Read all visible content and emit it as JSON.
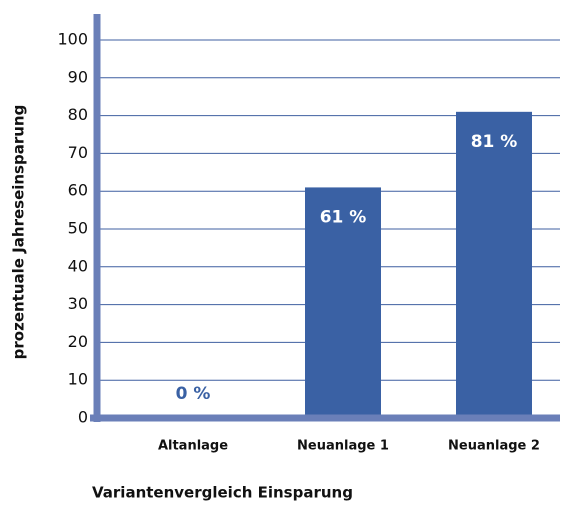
{
  "chart_data": {
    "type": "bar",
    "x_label": "Variantenvergleich Einsparung",
    "y_label": "prozentuale Jahreseinsparung",
    "categories": [
      "Altanlage",
      "Neuanlage 1",
      "Neuanlage 2"
    ],
    "values": [
      0,
      61,
      81
    ],
    "value_labels": [
      "0 %",
      "61 %",
      "81 %"
    ],
    "color": "#3a61a4",
    "ylim": [
      0,
      100
    ],
    "yticks": [
      0,
      10,
      20,
      30,
      40,
      50,
      60,
      70,
      80,
      90,
      100
    ],
    "grid": true
  }
}
